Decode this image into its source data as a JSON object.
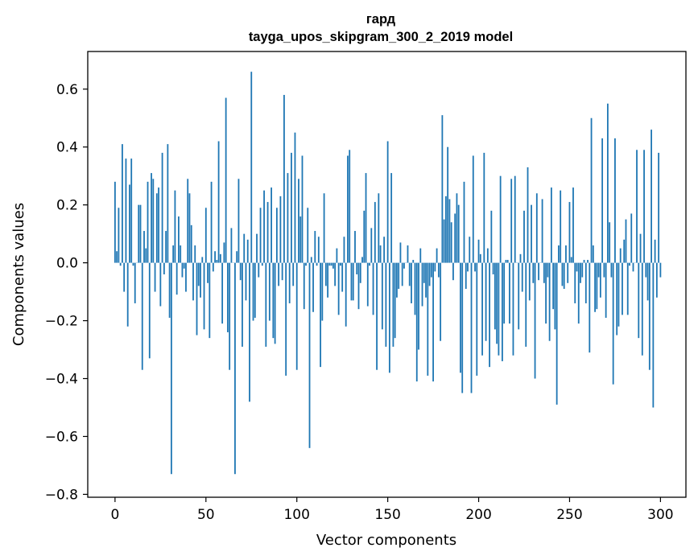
{
  "chart_data": {
    "type": "bar",
    "title": "гард",
    "subtitle": "tayga_upos_skipgram_300_2_2019 model",
    "xlabel": "Vector components",
    "ylabel": "Components values",
    "xlim": [
      -15,
      314
    ],
    "ylim": [
      -0.81,
      0.73
    ],
    "xticks": [
      0,
      50,
      100,
      150,
      200,
      250,
      300
    ],
    "yticks": [
      -0.8,
      -0.6,
      -0.4,
      -0.2,
      0.0,
      0.2,
      0.4,
      0.6
    ],
    "xtick_labels": [
      "0",
      "50",
      "100",
      "150",
      "200",
      "250",
      "300"
    ],
    "ytick_labels": [
      "−0.8",
      "−0.6",
      "−0.4",
      "−0.2",
      "0.0",
      "0.2",
      "0.4",
      "0.6"
    ],
    "grid": false,
    "bar_color": "#1f77b4",
    "values": [
      0.28,
      0.04,
      0.19,
      -0.01,
      0.41,
      -0.1,
      0.36,
      -0.22,
      0.27,
      0.36,
      -0.01,
      -0.14,
      0.0,
      0.2,
      0.2,
      -0.37,
      0.11,
      0.05,
      0.28,
      -0.33,
      0.31,
      0.29,
      -0.1,
      0.24,
      0.26,
      -0.15,
      0.38,
      -0.04,
      0.11,
      0.41,
      -0.19,
      -0.73,
      0.06,
      0.25,
      -0.11,
      0.16,
      0.06,
      -0.05,
      -0.02,
      -0.1,
      0.29,
      0.24,
      0.13,
      -0.13,
      0.06,
      -0.25,
      -0.08,
      -0.12,
      0.02,
      -0.23,
      0.19,
      -0.07,
      -0.26,
      0.28,
      -0.03,
      0.04,
      0.01,
      0.42,
      0.03,
      -0.21,
      0.07,
      0.57,
      -0.24,
      -0.37,
      0.12,
      0.0,
      -0.73,
      0.04,
      0.29,
      -0.06,
      -0.29,
      0.1,
      -0.13,
      0.08,
      -0.48,
      0.66,
      -0.2,
      -0.19,
      0.1,
      -0.05,
      0.19,
      -0.01,
      0.25,
      -0.29,
      0.21,
      -0.2,
      0.26,
      -0.26,
      -0.28,
      0.19,
      -0.08,
      0.23,
      -0.06,
      0.58,
      -0.39,
      0.31,
      -0.14,
      0.38,
      -0.08,
      0.45,
      -0.37,
      0.29,
      0.16,
      0.37,
      -0.16,
      -0.01,
      0.19,
      -0.64,
      0.02,
      -0.17,
      0.11,
      -0.01,
      0.09,
      -0.36,
      -0.2,
      0.24,
      -0.08,
      -0.12,
      -0.01,
      -0.01,
      -0.02,
      -0.08,
      0.05,
      -0.18,
      -0.01,
      -0.1,
      0.09,
      -0.22,
      0.37,
      0.39,
      -0.13,
      -0.13,
      0.11,
      -0.04,
      -0.16,
      -0.07,
      0.02,
      0.18,
      0.31,
      -0.15,
      -0.01,
      0.12,
      -0.18,
      0.21,
      -0.37,
      0.24,
      0.06,
      -0.23,
      0.09,
      -0.29,
      0.42,
      -0.38,
      0.31,
      -0.29,
      -0.26,
      -0.12,
      -0.09,
      0.07,
      -0.08,
      -0.02,
      0.0,
      0.06,
      -0.08,
      -0.14,
      0.01,
      -0.18,
      -0.41,
      -0.3,
      0.05,
      -0.15,
      -0.07,
      -0.12,
      -0.39,
      -0.08,
      -0.05,
      -0.41,
      -0.03,
      0.05,
      -0.05,
      -0.27,
      0.51,
      0.15,
      0.23,
      0.4,
      0.22,
      0.14,
      -0.06,
      0.17,
      0.24,
      0.2,
      -0.38,
      -0.45,
      0.28,
      -0.09,
      -0.03,
      0.09,
      -0.45,
      0.37,
      -0.03,
      -0.39,
      0.08,
      0.03,
      -0.32,
      0.38,
      -0.27,
      0.05,
      -0.36,
      0.18,
      -0.04,
      -0.23,
      -0.28,
      -0.32,
      0.3,
      -0.34,
      -0.21,
      0.01,
      0.01,
      -0.21,
      0.29,
      -0.32,
      0.3,
      0.0,
      -0.23,
      0.03,
      -0.1,
      0.18,
      -0.29,
      0.33,
      -0.13,
      0.2,
      -0.07,
      -0.4,
      0.24,
      -0.06,
      0.0,
      0.22,
      -0.07,
      -0.21,
      -0.05,
      -0.27,
      0.26,
      -0.16,
      -0.23,
      -0.49,
      0.06,
      0.25,
      -0.08,
      -0.09,
      0.06,
      -0.07,
      0.21,
      0.02,
      0.26,
      -0.14,
      -0.03,
      -0.21,
      -0.07,
      -0.05,
      0.01,
      -0.14,
      0.01,
      -0.31,
      0.5,
      0.06,
      -0.17,
      -0.16,
      -0.05,
      -0.12,
      0.43,
      -0.05,
      -0.19,
      0.55,
      0.14,
      -0.05,
      -0.42,
      0.43,
      -0.25,
      -0.22,
      0.05,
      -0.18,
      0.08,
      0.15,
      -0.18,
      -0.01,
      0.17,
      -0.03,
      0.0,
      0.39,
      -0.26,
      0.1,
      -0.32,
      0.39,
      -0.05,
      -0.13,
      -0.37,
      0.46,
      -0.5,
      0.08,
      -0.12,
      0.38,
      -0.05
    ]
  }
}
